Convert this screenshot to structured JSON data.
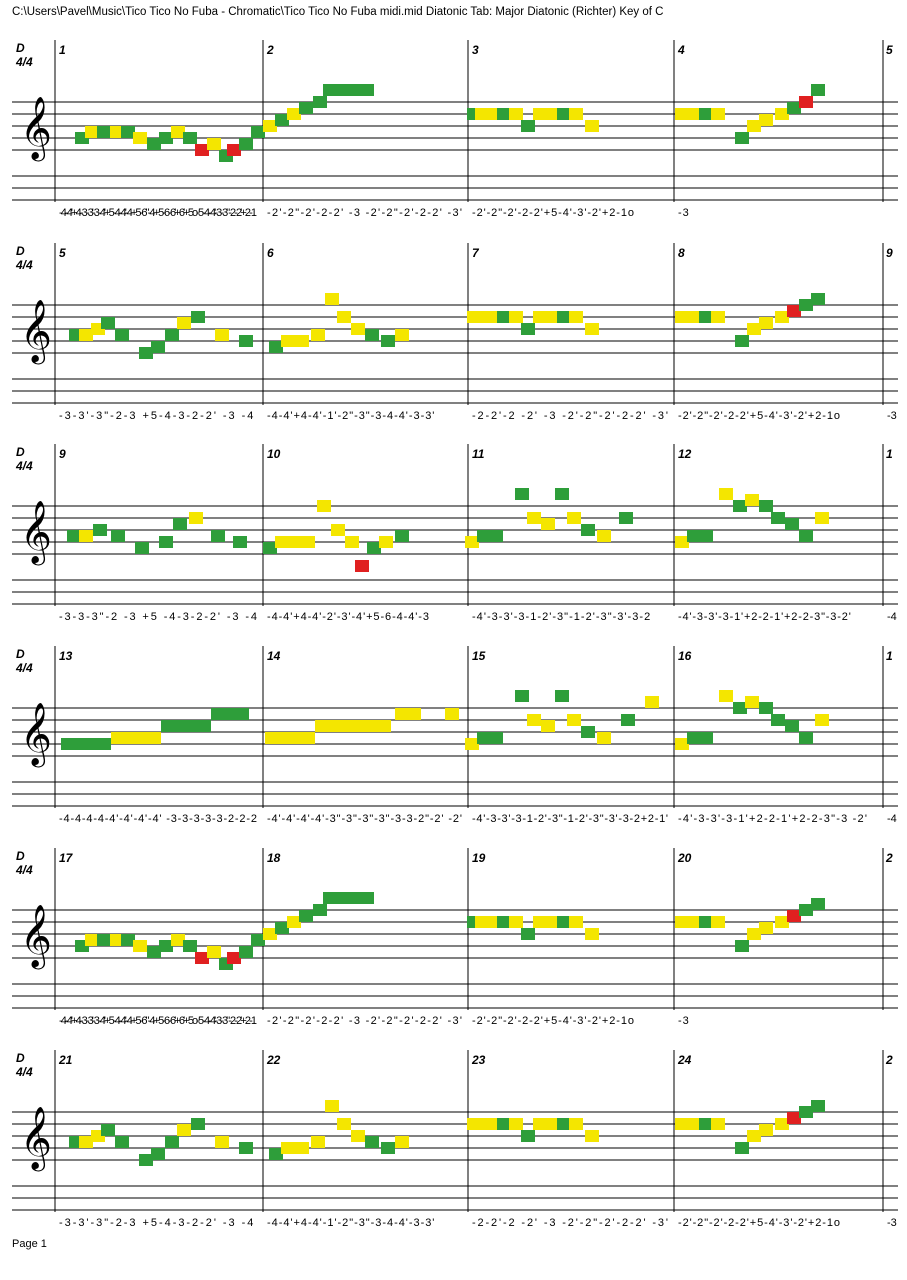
{
  "header": "C:\\Users\\Pavel\\Music\\Tico Tico No Fuba - Chromatic\\Tico Tico No Fuba midi.mid Diatonic Tab: Major Diatonic (Richter) Key of C",
  "footer": "Page 1",
  "key_label": "D",
  "time_signature": "4/4",
  "colors": {
    "green": "#2e9e3a",
    "yellow": "#f4e600",
    "red": "#e02020",
    "staff": "#000000"
  },
  "systems": [
    {
      "measures": [
        "1",
        "2",
        "3",
        "4"
      ],
      "next_measure": "5",
      "tabs": [
        "-4-4'+4-3-3'-3-4'+5-4-4'-4+5-6\"-4+5-6-6'+6'+5o-5-4-4'-3-3\"-2-2'+2-1",
        "-2'-2\"-2'-2-2'   -3   -2'-2\"-2'-2-2'   -3'",
        "-2'-2\"-2'-2-2'+5-4'-3'-2'+2-1o",
        "-3"
      ],
      "melody": [
        [
          20,
          2,
          "g"
        ],
        [
          30,
          3,
          "y"
        ],
        [
          42,
          3,
          "g"
        ],
        [
          55,
          3,
          "y"
        ],
        [
          66,
          3,
          "g"
        ],
        [
          78,
          2,
          "y"
        ],
        [
          92,
          1,
          "g"
        ],
        [
          104,
          2,
          "g"
        ],
        [
          116,
          3,
          "y"
        ],
        [
          128,
          2,
          "g"
        ],
        [
          140,
          0,
          "r"
        ],
        [
          152,
          1,
          "y"
        ],
        [
          164,
          -1,
          "g"
        ],
        [
          172,
          0,
          "r"
        ],
        [
          184,
          1,
          "g"
        ],
        [
          196,
          3,
          "g"
        ],
        [
          208,
          4,
          "y"
        ],
        [
          220,
          5,
          "g"
        ],
        [
          232,
          6,
          "y"
        ],
        [
          244,
          7,
          "g"
        ],
        [
          258,
          8,
          "g"
        ],
        [
          268,
          10,
          "g"
        ],
        [
          281,
          10,
          "g"
        ],
        [
          294,
          10,
          "g"
        ],
        [
          305,
          10,
          "g"
        ],
        [
          412,
          6,
          "g"
        ],
        [
          420,
          6,
          "y"
        ],
        [
          430,
          6,
          "y"
        ],
        [
          442,
          6,
          "g"
        ],
        [
          454,
          6,
          "y"
        ],
        [
          466,
          4,
          "g"
        ],
        [
          478,
          6,
          "y"
        ],
        [
          490,
          6,
          "y"
        ],
        [
          502,
          6,
          "g"
        ],
        [
          514,
          6,
          "y"
        ],
        [
          530,
          4,
          "y"
        ],
        [
          620,
          6,
          "y"
        ],
        [
          632,
          6,
          "y"
        ],
        [
          644,
          6,
          "g"
        ],
        [
          656,
          6,
          "y"
        ],
        [
          680,
          2,
          "g"
        ],
        [
          692,
          4,
          "y"
        ],
        [
          704,
          5,
          "y"
        ],
        [
          720,
          6,
          "y"
        ],
        [
          732,
          7,
          "g"
        ],
        [
          744,
          8,
          "r"
        ],
        [
          756,
          10,
          "g"
        ]
      ]
    },
    {
      "measures": [
        "5",
        "6",
        "7",
        "8"
      ],
      "next_measure": "9",
      "tabs": [
        "-3-3'-3\"-2-3   +5-4-3-2-2'   -3   -4",
        "-4-4'+4-4'-1'-2\"-3\"-3-4-4'-3-3'",
        "-2-2'-2   -2'   -3   -2'-2\"-2'-2-2'   -3'",
        "-2'-2\"-2'-2-2'+5-4'-3'-2'+2-1o",
        "-3"
      ],
      "melody": [
        [
          14,
          3,
          "g"
        ],
        [
          24,
          3,
          "y"
        ],
        [
          36,
          4,
          "y"
        ],
        [
          46,
          5,
          "g"
        ],
        [
          60,
          3,
          "g"
        ],
        [
          84,
          0,
          "g"
        ],
        [
          96,
          1,
          "g"
        ],
        [
          110,
          3,
          "g"
        ],
        [
          122,
          5,
          "y"
        ],
        [
          136,
          6,
          "g"
        ],
        [
          160,
          3,
          "y"
        ],
        [
          184,
          2,
          "g"
        ],
        [
          214,
          1,
          "g"
        ],
        [
          226,
          2,
          "y"
        ],
        [
          240,
          2,
          "y"
        ],
        [
          256,
          3,
          "y"
        ],
        [
          270,
          9,
          "y"
        ],
        [
          282,
          6,
          "y"
        ],
        [
          296,
          4,
          "y"
        ],
        [
          310,
          3,
          "g"
        ],
        [
          326,
          2,
          "g"
        ],
        [
          340,
          3,
          "y"
        ],
        [
          412,
          6,
          "y"
        ],
        [
          420,
          6,
          "y"
        ],
        [
          430,
          6,
          "y"
        ],
        [
          442,
          6,
          "g"
        ],
        [
          454,
          6,
          "y"
        ],
        [
          466,
          4,
          "g"
        ],
        [
          478,
          6,
          "y"
        ],
        [
          490,
          6,
          "y"
        ],
        [
          502,
          6,
          "g"
        ],
        [
          514,
          6,
          "y"
        ],
        [
          530,
          4,
          "y"
        ],
        [
          620,
          6,
          "y"
        ],
        [
          632,
          6,
          "y"
        ],
        [
          644,
          6,
          "g"
        ],
        [
          656,
          6,
          "y"
        ],
        [
          680,
          2,
          "g"
        ],
        [
          692,
          4,
          "y"
        ],
        [
          704,
          5,
          "y"
        ],
        [
          720,
          6,
          "y"
        ],
        [
          732,
          7,
          "r"
        ],
        [
          744,
          8,
          "g"
        ],
        [
          756,
          9,
          "g"
        ]
      ]
    },
    {
      "measures": [
        "9",
        "10",
        "11",
        "12"
      ],
      "next_measure": "1",
      "tabs": [
        "-3-3-3\"-2   -3   +5   -4-3-2-2'   -3   -4",
        "-4-4'+4-4'-2'-3'-4'+5-6-4-4'-3",
        "-4'-3-3'-3-1-2'-3\"-1-2'-3\"-3'-3-2",
        "-4'-3-3'-3-1'+2-2-1'+2-2-3\"-3-2'",
        "-4"
      ],
      "melody": [
        [
          12,
          3,
          "g"
        ],
        [
          24,
          3,
          "y"
        ],
        [
          38,
          4,
          "g"
        ],
        [
          56,
          3,
          "g"
        ],
        [
          80,
          1,
          "g"
        ],
        [
          104,
          2,
          "g"
        ],
        [
          118,
          5,
          "g"
        ],
        [
          134,
          6,
          "y"
        ],
        [
          156,
          3,
          "g"
        ],
        [
          178,
          2,
          "g"
        ],
        [
          208,
          1,
          "g"
        ],
        [
          220,
          2,
          "y"
        ],
        [
          232,
          2,
          "y"
        ],
        [
          246,
          2,
          "y"
        ],
        [
          262,
          8,
          "y"
        ],
        [
          276,
          4,
          "y"
        ],
        [
          290,
          2,
          "y"
        ],
        [
          300,
          -2,
          "r"
        ],
        [
          312,
          1,
          "g"
        ],
        [
          324,
          2,
          "y"
        ],
        [
          340,
          3,
          "g"
        ],
        [
          410,
          2,
          "y"
        ],
        [
          422,
          3,
          "g"
        ],
        [
          434,
          3,
          "g"
        ],
        [
          460,
          10,
          "g"
        ],
        [
          472,
          6,
          "y"
        ],
        [
          486,
          5,
          "y"
        ],
        [
          500,
          10,
          "g"
        ],
        [
          512,
          6,
          "y"
        ],
        [
          526,
          4,
          "g"
        ],
        [
          542,
          3,
          "y"
        ],
        [
          564,
          6,
          "g"
        ],
        [
          620,
          2,
          "y"
        ],
        [
          632,
          3,
          "g"
        ],
        [
          644,
          3,
          "g"
        ],
        [
          664,
          10,
          "y"
        ],
        [
          678,
          8,
          "g"
        ],
        [
          690,
          9,
          "y"
        ],
        [
          704,
          8,
          "g"
        ],
        [
          716,
          6,
          "g"
        ],
        [
          730,
          5,
          "g"
        ],
        [
          744,
          3,
          "g"
        ],
        [
          760,
          6,
          "y"
        ]
      ]
    },
    {
      "measures": [
        "13",
        "14",
        "15",
        "16"
      ],
      "next_measure": "1",
      "tabs": [
        "-4-4-4-4-4'-4'-4'-4'   -3-3-3-3-3-2-2-2",
        "-4'-4'-4'-4'-3\"-3\"-3\"-3\"-3-3-2\"-2'   -2'",
        "-4'-3-3'-3-1-2'-3\"-1-2'-3\"-3'-3-2+2-1'",
        "-4'-3-3'-3-1'+2-2-1'+2-2-3\"-3   -2'",
        "-4"
      ],
      "melody": [
        [
          6,
          2,
          "g"
        ],
        [
          18,
          2,
          "g"
        ],
        [
          30,
          2,
          "g"
        ],
        [
          42,
          2,
          "g"
        ],
        [
          56,
          3,
          "y"
        ],
        [
          68,
          3,
          "y"
        ],
        [
          80,
          3,
          "y"
        ],
        [
          92,
          3,
          "y"
        ],
        [
          106,
          5,
          "g"
        ],
        [
          118,
          5,
          "g"
        ],
        [
          130,
          5,
          "g"
        ],
        [
          142,
          5,
          "g"
        ],
        [
          156,
          7,
          "g"
        ],
        [
          168,
          7,
          "g"
        ],
        [
          180,
          7,
          "g"
        ],
        [
          210,
          3,
          "y"
        ],
        [
          222,
          3,
          "y"
        ],
        [
          234,
          3,
          "y"
        ],
        [
          246,
          3,
          "y"
        ],
        [
          260,
          5,
          "y"
        ],
        [
          272,
          5,
          "y"
        ],
        [
          284,
          5,
          "y"
        ],
        [
          296,
          5,
          "y"
        ],
        [
          310,
          5,
          "y"
        ],
        [
          322,
          5,
          "y"
        ],
        [
          340,
          7,
          "y"
        ],
        [
          352,
          7,
          "y"
        ],
        [
          390,
          7,
          "y"
        ],
        [
          410,
          2,
          "y"
        ],
        [
          422,
          3,
          "g"
        ],
        [
          434,
          3,
          "g"
        ],
        [
          460,
          10,
          "g"
        ],
        [
          472,
          6,
          "y"
        ],
        [
          486,
          5,
          "y"
        ],
        [
          500,
          10,
          "g"
        ],
        [
          512,
          6,
          "y"
        ],
        [
          526,
          4,
          "g"
        ],
        [
          542,
          3,
          "y"
        ],
        [
          566,
          6,
          "g"
        ],
        [
          590,
          9,
          "y"
        ],
        [
          620,
          2,
          "y"
        ],
        [
          632,
          3,
          "g"
        ],
        [
          644,
          3,
          "g"
        ],
        [
          664,
          10,
          "y"
        ],
        [
          678,
          8,
          "g"
        ],
        [
          690,
          9,
          "y"
        ],
        [
          704,
          8,
          "g"
        ],
        [
          716,
          6,
          "g"
        ],
        [
          730,
          5,
          "g"
        ],
        [
          744,
          3,
          "g"
        ],
        [
          760,
          6,
          "y"
        ]
      ]
    },
    {
      "measures": [
        "17",
        "18",
        "19",
        "20"
      ],
      "next_measure": "2",
      "tabs": [
        "-4-4'+4-3-3'-3-4'+5-4-4'-4+5-6\"-4+5-6-6'+6'+5o-5-4-4'-3-3\"-2-2'+2-1",
        "-2'-2\"-2'-2-2'   -3   -2'-2\"-2'-2-2'   -3'",
        "-2'-2\"-2'-2-2'+5-4'-3'-2'+2-1o",
        "-3"
      ],
      "melody": [
        [
          20,
          2,
          "g"
        ],
        [
          30,
          3,
          "y"
        ],
        [
          42,
          3,
          "g"
        ],
        [
          55,
          3,
          "y"
        ],
        [
          66,
          3,
          "g"
        ],
        [
          78,
          2,
          "y"
        ],
        [
          92,
          1,
          "g"
        ],
        [
          104,
          2,
          "g"
        ],
        [
          116,
          3,
          "y"
        ],
        [
          128,
          2,
          "g"
        ],
        [
          140,
          0,
          "r"
        ],
        [
          152,
          1,
          "y"
        ],
        [
          164,
          -1,
          "g"
        ],
        [
          172,
          0,
          "r"
        ],
        [
          184,
          1,
          "g"
        ],
        [
          196,
          3,
          "g"
        ],
        [
          208,
          4,
          "y"
        ],
        [
          220,
          5,
          "g"
        ],
        [
          232,
          6,
          "y"
        ],
        [
          244,
          7,
          "g"
        ],
        [
          258,
          8,
          "g"
        ],
        [
          268,
          10,
          "g"
        ],
        [
          281,
          10,
          "g"
        ],
        [
          294,
          10,
          "g"
        ],
        [
          305,
          10,
          "g"
        ],
        [
          412,
          6,
          "g"
        ],
        [
          420,
          6,
          "y"
        ],
        [
          430,
          6,
          "y"
        ],
        [
          442,
          6,
          "g"
        ],
        [
          454,
          6,
          "y"
        ],
        [
          466,
          4,
          "g"
        ],
        [
          478,
          6,
          "y"
        ],
        [
          490,
          6,
          "y"
        ],
        [
          502,
          6,
          "g"
        ],
        [
          514,
          6,
          "y"
        ],
        [
          530,
          4,
          "y"
        ],
        [
          620,
          6,
          "y"
        ],
        [
          632,
          6,
          "y"
        ],
        [
          644,
          6,
          "g"
        ],
        [
          656,
          6,
          "y"
        ],
        [
          680,
          2,
          "g"
        ],
        [
          692,
          4,
          "y"
        ],
        [
          704,
          5,
          "y"
        ],
        [
          720,
          6,
          "y"
        ],
        [
          732,
          7,
          "r"
        ],
        [
          744,
          8,
          "g"
        ],
        [
          756,
          9,
          "g"
        ]
      ]
    },
    {
      "measures": [
        "21",
        "22",
        "23",
        "24"
      ],
      "next_measure": "2",
      "tabs": [
        "-3-3'-3\"-2-3   +5-4-3-2-2'   -3   -4",
        "-4-4'+4-4'-1'-2\"-3\"-3-4-4'-3-3'",
        "-2-2'-2   -2'   -3   -2'-2\"-2'-2-2'   -3'",
        "-2'-2\"-2'-2-2'+5-4'-3'-2'+2-1o",
        "-3"
      ],
      "melody": [
        [
          14,
          3,
          "g"
        ],
        [
          24,
          3,
          "y"
        ],
        [
          36,
          4,
          "y"
        ],
        [
          46,
          5,
          "g"
        ],
        [
          60,
          3,
          "g"
        ],
        [
          84,
          0,
          "g"
        ],
        [
          96,
          1,
          "g"
        ],
        [
          110,
          3,
          "g"
        ],
        [
          122,
          5,
          "y"
        ],
        [
          136,
          6,
          "g"
        ],
        [
          160,
          3,
          "y"
        ],
        [
          184,
          2,
          "g"
        ],
        [
          214,
          1,
          "g"
        ],
        [
          226,
          2,
          "y"
        ],
        [
          240,
          2,
          "y"
        ],
        [
          256,
          3,
          "y"
        ],
        [
          270,
          9,
          "y"
        ],
        [
          282,
          6,
          "y"
        ],
        [
          296,
          4,
          "y"
        ],
        [
          310,
          3,
          "g"
        ],
        [
          326,
          2,
          "g"
        ],
        [
          340,
          3,
          "y"
        ],
        [
          412,
          6,
          "y"
        ],
        [
          420,
          6,
          "y"
        ],
        [
          430,
          6,
          "y"
        ],
        [
          442,
          6,
          "g"
        ],
        [
          454,
          6,
          "y"
        ],
        [
          466,
          4,
          "g"
        ],
        [
          478,
          6,
          "y"
        ],
        [
          490,
          6,
          "y"
        ],
        [
          502,
          6,
          "g"
        ],
        [
          514,
          6,
          "y"
        ],
        [
          530,
          4,
          "y"
        ],
        [
          620,
          6,
          "y"
        ],
        [
          632,
          6,
          "y"
        ],
        [
          644,
          6,
          "g"
        ],
        [
          656,
          6,
          "y"
        ],
        [
          680,
          2,
          "g"
        ],
        [
          692,
          4,
          "y"
        ],
        [
          704,
          5,
          "y"
        ],
        [
          720,
          6,
          "y"
        ],
        [
          732,
          7,
          "r"
        ],
        [
          744,
          8,
          "g"
        ],
        [
          756,
          9,
          "g"
        ]
      ]
    }
  ]
}
